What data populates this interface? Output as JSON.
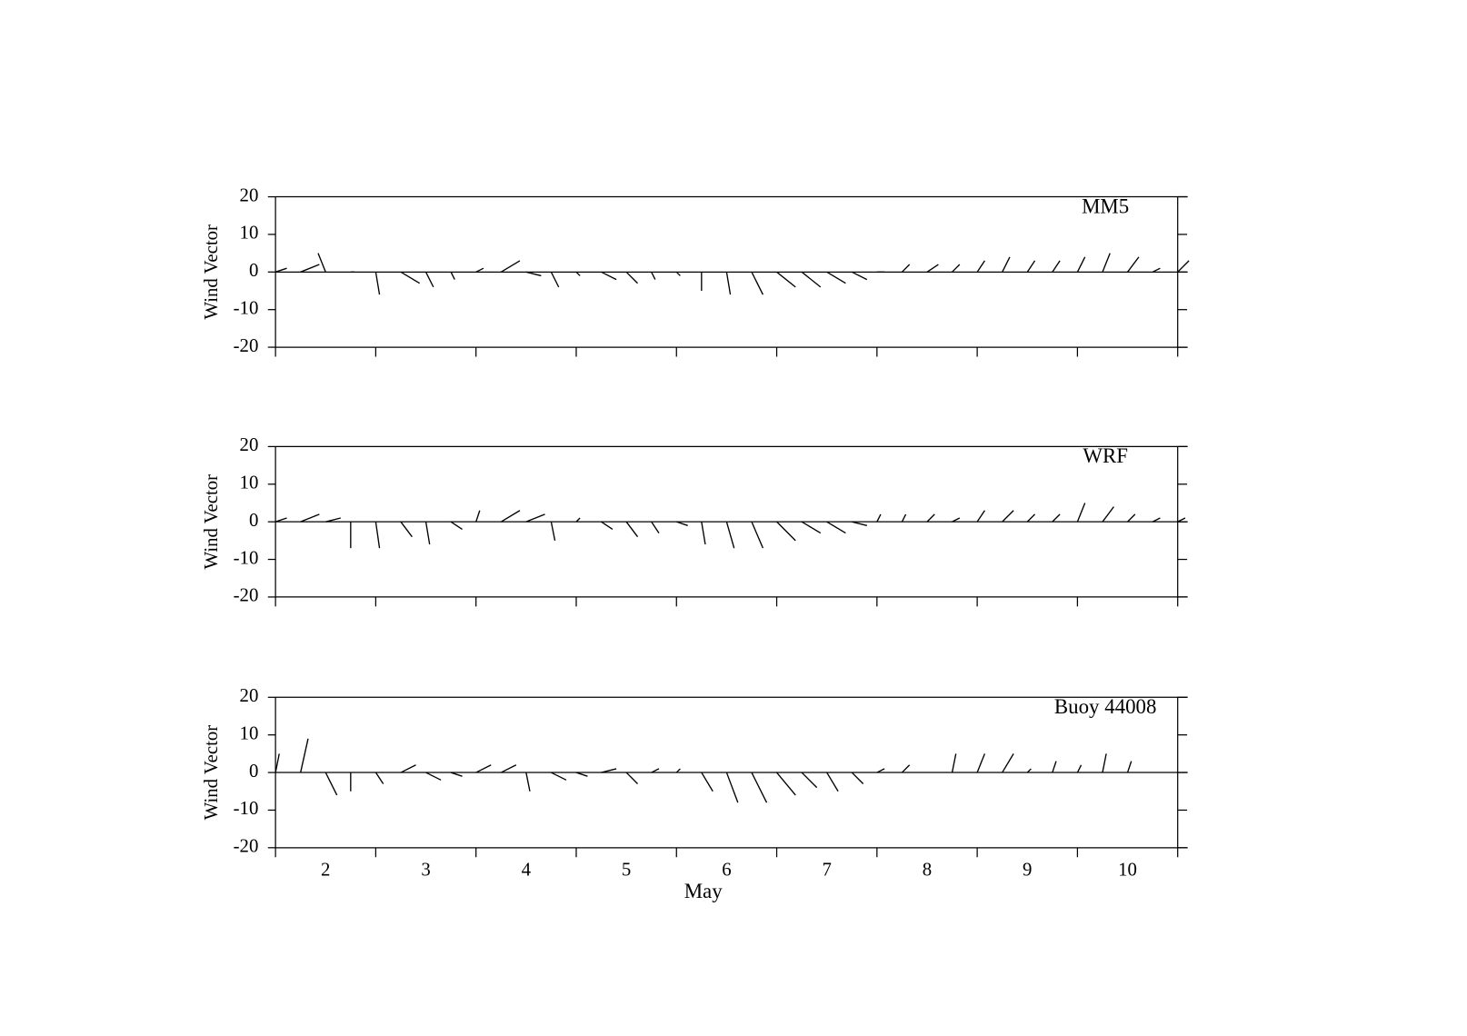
{
  "chart_data": [
    {
      "type": "stick",
      "label": "MM5",
      "ylabel": "Wind Vector",
      "color": "#000000",
      "x": [
        1.5,
        1.75,
        2,
        2.25,
        2.5,
        2.75,
        3,
        3.25,
        3.5,
        3.75,
        4,
        4.25,
        4.5,
        4.75,
        5,
        5.25,
        5.5,
        5.75,
        6,
        6.25,
        6.5,
        6.75,
        7,
        7.25,
        7.5,
        7.75,
        8,
        8.25,
        8.5,
        8.75,
        9,
        9.25,
        9.5,
        9.75,
        10,
        10.25,
        10.5
      ],
      "u": [
        3,
        5,
        -2,
        1,
        1,
        5,
        2,
        1,
        2,
        5,
        4,
        2,
        1,
        4,
        3,
        1,
        1,
        0,
        1,
        3,
        5,
        5,
        5,
        4,
        2,
        2,
        3,
        2,
        2,
        2,
        2,
        2,
        2,
        2,
        3,
        2,
        3
      ],
      "v": [
        1,
        2,
        5,
        0,
        -6,
        -3,
        -4,
        -2,
        1,
        3,
        -1,
        -4,
        -1,
        -2,
        -3,
        -2,
        -1,
        -5,
        -6,
        -6,
        -4,
        -4,
        -3,
        -2,
        0,
        2,
        2,
        2,
        3,
        4,
        3,
        3,
        4,
        5,
        4,
        1,
        3
      ],
      "xlim": [
        1.5,
        10.6
      ],
      "ylim": [
        -20,
        20
      ],
      "yticks": [
        -20,
        -10,
        0,
        10,
        20
      ],
      "xminorticks": [
        1.5,
        2.5,
        3.5,
        4.5,
        5.5,
        6.5,
        7.5,
        8.5,
        9.5,
        10.5
      ]
    },
    {
      "type": "stick",
      "label": "WRF",
      "ylabel": "Wind Vector",
      "color": "#000000",
      "x": [
        1.5,
        1.75,
        2,
        2.25,
        2.5,
        2.75,
        3,
        3.25,
        3.5,
        3.75,
        4,
        4.25,
        4.5,
        4.75,
        5,
        5.25,
        5.5,
        5.75,
        6,
        6.25,
        6.5,
        6.75,
        7,
        7.25,
        7.5,
        7.75,
        8,
        8.25,
        8.5,
        8.75,
        9,
        9.25,
        9.5,
        9.75,
        10,
        10.25,
        10.5
      ],
      "u": [
        3,
        5,
        4,
        0,
        1,
        3,
        1,
        3,
        1,
        5,
        5,
        1,
        1,
        3,
        3,
        2,
        3,
        1,
        2,
        3,
        5,
        5,
        5,
        4,
        1,
        1,
        2,
        2,
        2,
        3,
        2,
        2,
        2,
        3,
        2,
        2,
        2
      ],
      "v": [
        1,
        2,
        1,
        -7,
        -7,
        -4,
        -6,
        -2,
        3,
        3,
        2,
        -5,
        1,
        -2,
        -4,
        -3,
        -1,
        -6,
        -7,
        -7,
        -5,
        -3,
        -3,
        -1,
        2,
        2,
        2,
        1,
        3,
        3,
        2,
        2,
        5,
        4,
        2,
        1,
        1
      ],
      "xlim": [
        1.5,
        10.6
      ],
      "ylim": [
        -20,
        20
      ],
      "yticks": [
        -20,
        -10,
        0,
        10,
        20
      ],
      "xminorticks": [
        1.5,
        2.5,
        3.5,
        4.5,
        5.5,
        6.5,
        7.5,
        8.5,
        9.5,
        10.5
      ]
    },
    {
      "type": "stick",
      "label": "Buoy 44008",
      "ylabel": "Wind Vector",
      "xlabel": "May",
      "color": "#000000",
      "x": [
        1.5,
        1.75,
        2,
        2.25,
        2.5,
        2.75,
        3,
        3.25,
        3.5,
        3.75,
        4,
        4.25,
        4.5,
        4.75,
        5,
        5.25,
        5.5,
        5.75,
        6,
        6.25,
        6.5,
        6.75,
        7,
        7.25,
        7.5,
        7.75,
        8,
        8.25,
        8.5,
        8.75,
        9,
        9.25,
        9.5,
        9.75,
        10,
        10.25,
        10.5
      ],
      "u": [
        1,
        2,
        3,
        0,
        2,
        4,
        4,
        3,
        4,
        4,
        1,
        4,
        3,
        4,
        3,
        2,
        1,
        3,
        3,
        4,
        5,
        4,
        3,
        3,
        2,
        2,
        0,
        1,
        2,
        3,
        1,
        1,
        1,
        1,
        1,
        null,
        null
      ],
      "v": [
        5,
        9,
        -6,
        -5,
        -3,
        2,
        -2,
        -1,
        2,
        2,
        -5,
        -2,
        -1,
        1,
        -3,
        1,
        1,
        -5,
        -8,
        -8,
        -6,
        -4,
        -5,
        -3,
        1,
        2,
        0,
        5,
        5,
        5,
        1,
        3,
        2,
        5,
        3,
        null,
        null
      ],
      "xlim": [
        1.5,
        10.6
      ],
      "ylim": [
        -20,
        20
      ],
      "yticks": [
        -20,
        -10,
        0,
        10,
        20
      ],
      "xticks": [
        2,
        3,
        4,
        5,
        6,
        7,
        8,
        9,
        10
      ],
      "xminorticks": [
        1.5,
        2.5,
        3.5,
        4.5,
        5.5,
        6.5,
        7.5,
        8.5,
        9.5,
        10.5
      ]
    }
  ]
}
